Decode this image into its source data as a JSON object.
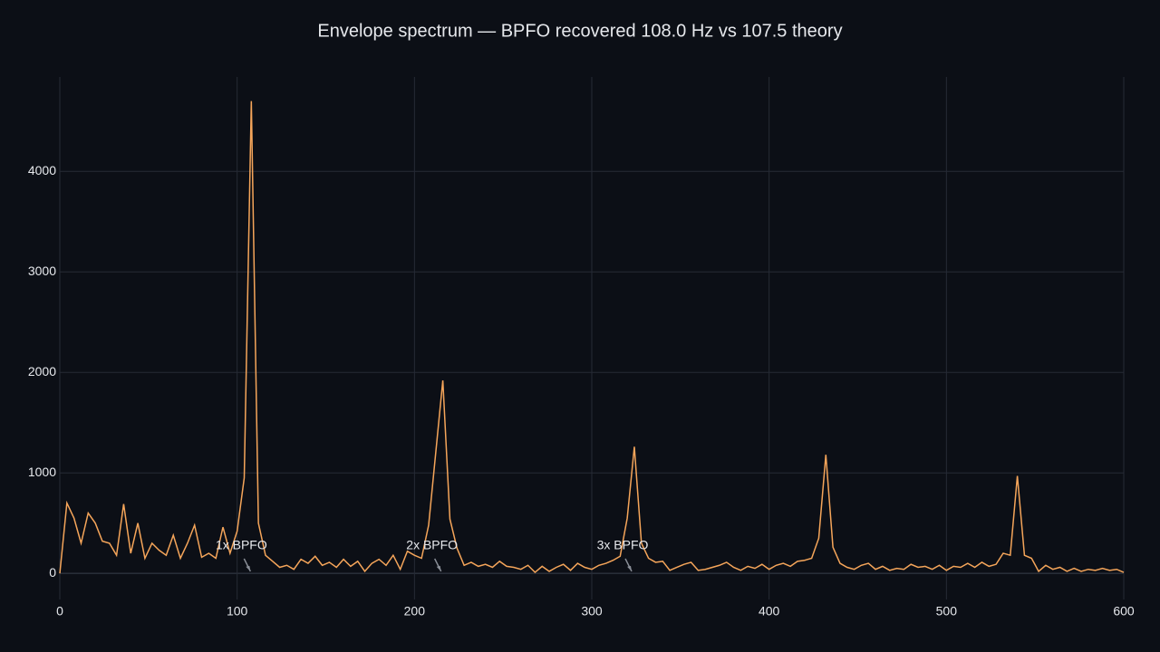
{
  "chart_data": {
    "type": "line",
    "title": "Envelope spectrum — BPFO recovered 108.0 Hz vs 107.5 theory",
    "x": [
      0,
      4,
      8,
      12,
      16,
      20,
      24,
      28,
      32,
      36,
      40,
      44,
      48,
      52,
      56,
      60,
      64,
      68,
      72,
      76,
      80,
      84,
      88,
      92,
      96,
      100,
      104,
      108,
      112,
      116,
      120,
      124,
      128,
      132,
      136,
      140,
      144,
      148,
      152,
      156,
      160,
      164,
      168,
      172,
      176,
      180,
      184,
      188,
      192,
      196,
      200,
      204,
      208,
      212,
      216,
      220,
      224,
      228,
      232,
      236,
      240,
      244,
      248,
      252,
      256,
      260,
      264,
      268,
      272,
      276,
      280,
      284,
      288,
      292,
      296,
      300,
      304,
      308,
      312,
      316,
      320,
      324,
      328,
      332,
      336,
      340,
      344,
      348,
      352,
      356,
      360,
      364,
      368,
      372,
      376,
      380,
      384,
      388,
      392,
      396,
      400,
      404,
      408,
      412,
      416,
      420,
      424,
      428,
      432,
      436,
      440,
      444,
      448,
      452,
      456,
      460,
      464,
      468,
      472,
      476,
      480,
      484,
      488,
      492,
      496,
      500,
      504,
      508,
      512,
      516,
      520,
      524,
      528,
      532,
      536,
      540,
      544,
      548,
      552,
      556,
      560,
      564,
      568,
      572,
      576,
      580,
      584,
      588,
      592,
      596,
      600
    ],
    "series": [
      {
        "color": "#f5a55a",
        "values": [
          0,
          700,
          550,
          300,
          600,
          500,
          320,
          300,
          180,
          690,
          200,
          500,
          150,
          300,
          230,
          180,
          380,
          150,
          300,
          480,
          160,
          200,
          150,
          460,
          200,
          420,
          950,
          4700,
          500,
          180,
          120,
          60,
          80,
          40,
          140,
          100,
          170,
          80,
          110,
          60,
          140,
          70,
          120,
          20,
          100,
          140,
          80,
          180,
          40,
          220,
          180,
          150,
          480,
          1200,
          1920,
          540,
          250,
          80,
          110,
          70,
          90,
          60,
          120,
          70,
          60,
          40,
          80,
          10,
          70,
          20,
          60,
          90,
          30,
          100,
          60,
          40,
          80,
          100,
          130,
          170,
          550,
          1260,
          300,
          150,
          110,
          120,
          30,
          60,
          90,
          110,
          30,
          40,
          60,
          80,
          110,
          60,
          30,
          70,
          50,
          90,
          40,
          80,
          100,
          70,
          120,
          130,
          150,
          350,
          1180,
          260,
          100,
          60,
          40,
          80,
          100,
          40,
          70,
          30,
          50,
          40,
          90,
          60,
          70,
          40,
          80,
          30,
          70,
          60,
          100,
          60,
          110,
          70,
          90,
          200,
          180,
          970,
          180,
          150,
          20,
          80,
          40,
          60,
          20,
          50,
          20,
          40,
          30,
          50,
          30,
          40,
          10
        ]
      }
    ],
    "annotations": [
      {
        "text": "1x BPFO",
        "x": 107.5,
        "y": 20
      },
      {
        "text": "2x BPFO",
        "x": 215,
        "y": 20
      },
      {
        "text": "3x BPFO",
        "x": 322.5,
        "y": 20
      }
    ],
    "xlim": [
      0,
      600
    ],
    "xticks": [
      0,
      100,
      200,
      300,
      400,
      500,
      600
    ],
    "ylim": [
      -260,
      4940
    ],
    "yticks": [
      0,
      1000,
      2000,
      3000,
      4000
    ],
    "grid": true
  }
}
